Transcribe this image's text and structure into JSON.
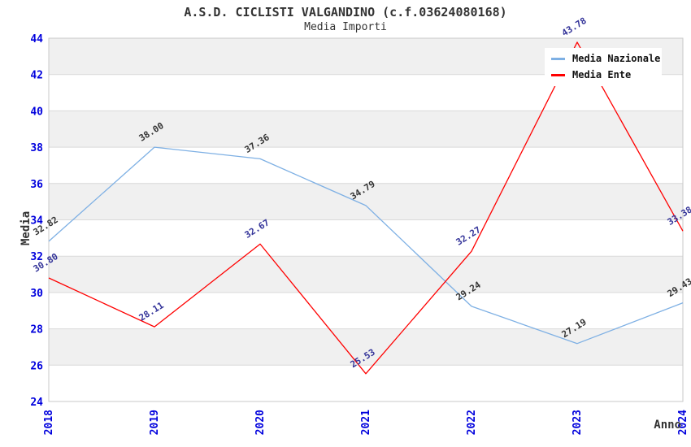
{
  "chart_data": {
    "type": "line",
    "title": "A.S.D. CICLISTI VALGANDINO (c.f.03624080168)",
    "subtitle": "Media Importi",
    "xlabel": "Anno",
    "ylabel": "Media",
    "categories": [
      "2018",
      "2019",
      "2020",
      "2021",
      "2022",
      "2023",
      "2024"
    ],
    "series": [
      {
        "name": "Media Nazionale",
        "color": "#7eb0e4",
        "label_color": "#333333",
        "values": [
          32.82,
          38.0,
          37.36,
          34.79,
          29.24,
          27.19,
          29.43
        ]
      },
      {
        "name": "Media Ente",
        "color": "#ff0000",
        "label_color": "#333399",
        "values": [
          30.8,
          28.11,
          32.67,
          25.53,
          32.27,
          43.78,
          33.38
        ]
      }
    ],
    "ylim": [
      24,
      44
    ],
    "ytick_step": 2,
    "yticks": [
      24,
      26,
      28,
      30,
      32,
      34,
      36,
      38,
      40,
      42,
      44
    ],
    "grid": "horizontal-bands",
    "legend_position": "top-right",
    "style": {
      "band_color": "#f0f0f0",
      "grid_color": "#d9d9d9",
      "border_color": "#c9c9c9",
      "tick_color": "#0000dd",
      "axis_title_color": "#333333"
    }
  }
}
